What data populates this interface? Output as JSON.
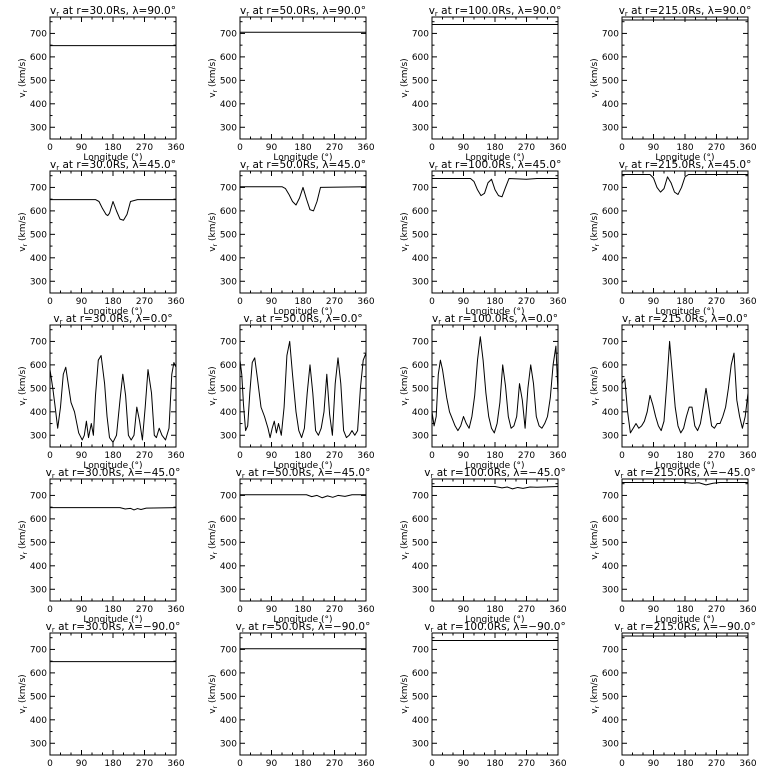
{
  "figure": {
    "xlabel": "Longitude (°)",
    "ylabel": "v",
    "ylabel_sub": "r",
    "ylabel_unit": "(km/s)",
    "title_prefix": "v",
    "title_sub": "r",
    "title_mid": " at r=",
    "title_rs": "Rs, ",
    "title_lambda": "λ=",
    "title_deg": "°",
    "radii": [
      "30.0",
      "50.0",
      "100.0",
      "215.0"
    ],
    "latitudes": [
      "90.0",
      "45.0",
      "0.0",
      "-45.0",
      "-90.0"
    ],
    "latitude_display": [
      "90.0",
      "45.0",
      "0.0",
      "−45.0",
      "−90.0"
    ],
    "xticks": [
      "0",
      "90",
      "180",
      "270",
      "360"
    ],
    "yticks": [
      "300",
      "400",
      "500",
      "600",
      "700"
    ],
    "colors": {
      "line": "#000000",
      "axes": "#000000",
      "background": "#ffffff"
    }
  },
  "chart_data": [
    {
      "type": "line",
      "title": "vr at r=30.0Rs, λ=90.0°",
      "xlabel": "Longitude (°)",
      "ylabel": "vr (km/s)",
      "xlim": [
        0,
        360
      ],
      "ylim": [
        250,
        770
      ],
      "x": [
        0,
        360
      ],
      "y": [
        648,
        648
      ]
    },
    {
      "type": "line",
      "title": "vr at r=50.0Rs, λ=90.0°",
      "xlabel": "Longitude (°)",
      "ylabel": "vr (km/s)",
      "xlim": [
        0,
        360
      ],
      "ylim": [
        250,
        770
      ],
      "x": [
        0,
        360
      ],
      "y": [
        705,
        705
      ]
    },
    {
      "type": "line",
      "title": "vr at r=100.0Rs, λ=90.0°",
      "xlabel": "Longitude (°)",
      "ylabel": "vr (km/s)",
      "xlim": [
        0,
        360
      ],
      "ylim": [
        250,
        770
      ],
      "x": [
        0,
        360
      ],
      "y": [
        738,
        738
      ]
    },
    {
      "type": "line",
      "title": "vr at r=215.0Rs, λ=90.0°",
      "xlabel": "Longitude (°)",
      "ylabel": "vr (km/s)",
      "xlim": [
        0,
        360
      ],
      "ylim": [
        250,
        770
      ],
      "x": [
        0,
        360
      ],
      "y": [
        757,
        757
      ]
    },
    {
      "type": "line",
      "title": "vr at r=30.0Rs, λ=45.0°",
      "xlabel": "Longitude (°)",
      "ylabel": "vr (km/s)",
      "xlim": [
        0,
        360
      ],
      "ylim": [
        250,
        770
      ],
      "x": [
        0,
        130,
        140,
        150,
        160,
        165,
        170,
        180,
        190,
        200,
        210,
        220,
        230,
        250,
        360
      ],
      "y": [
        648,
        648,
        640,
        610,
        585,
        580,
        590,
        640,
        600,
        565,
        560,
        585,
        640,
        648,
        648
      ]
    },
    {
      "type": "line",
      "title": "vr at r=50.0Rs, λ=45.0°",
      "xlabel": "Longitude (°)",
      "ylabel": "vr (km/s)",
      "xlim": [
        0,
        360
      ],
      "ylim": [
        250,
        770
      ],
      "x": [
        0,
        120,
        130,
        140,
        150,
        160,
        170,
        180,
        190,
        200,
        210,
        220,
        230,
        360
      ],
      "y": [
        703,
        703,
        695,
        670,
        640,
        625,
        655,
        700,
        650,
        605,
        600,
        640,
        700,
        703
      ]
    },
    {
      "type": "line",
      "title": "vr at r=100.0Rs, λ=45.0°",
      "xlabel": "Longitude (°)",
      "ylabel": "vr (km/s)",
      "xlim": [
        0,
        360
      ],
      "ylim": [
        250,
        770
      ],
      "x": [
        0,
        110,
        120,
        130,
        140,
        150,
        160,
        170,
        180,
        190,
        200,
        210,
        220,
        270,
        300,
        360
      ],
      "y": [
        738,
        738,
        725,
        690,
        665,
        675,
        720,
        735,
        690,
        665,
        660,
        700,
        738,
        735,
        738,
        738
      ]
    },
    {
      "type": "line",
      "title": "vr at r=215.0Rs, λ=45.0°",
      "xlabel": "Longitude (°)",
      "ylabel": "vr (km/s)",
      "xlim": [
        0,
        360
      ],
      "ylim": [
        250,
        770
      ],
      "x": [
        0,
        80,
        90,
        100,
        110,
        120,
        130,
        140,
        150,
        160,
        170,
        180,
        190,
        360
      ],
      "y": [
        755,
        755,
        740,
        700,
        680,
        695,
        745,
        720,
        680,
        670,
        700,
        745,
        755,
        755
      ]
    },
    {
      "type": "line",
      "title": "vr at r=30.0Rs, λ=0.0°",
      "xlabel": "Longitude (°)",
      "ylabel": "vr (km/s)",
      "xlim": [
        0,
        360
      ],
      "ylim": [
        250,
        770
      ],
      "x": [
        0,
        8,
        14,
        22,
        30,
        38,
        45,
        52,
        60,
        70,
        82,
        92,
        98,
        104,
        110,
        118,
        124,
        130,
        138,
        146,
        156,
        163,
        170,
        180,
        190,
        200,
        208,
        216,
        224,
        232,
        240,
        248,
        256,
        264,
        272,
        280,
        290,
        298,
        304,
        312,
        320,
        330,
        340,
        348,
        354,
        360
      ],
      "y": [
        580,
        500,
        430,
        330,
        420,
        560,
        590,
        520,
        440,
        400,
        310,
        280,
        300,
        360,
        290,
        350,
        300,
        470,
        620,
        640,
        520,
        380,
        290,
        270,
        300,
        450,
        560,
        470,
        300,
        280,
        300,
        420,
        360,
        280,
        420,
        580,
        480,
        300,
        290,
        330,
        300,
        280,
        330,
        560,
        610,
        590
      ]
    },
    {
      "type": "line",
      "title": "vr at r=50.0Rs, λ=0.0°",
      "xlabel": "Longitude (°)",
      "ylabel": "vr (km/s)",
      "xlim": [
        0,
        360
      ],
      "ylim": [
        250,
        770
      ],
      "x": [
        0,
        5,
        10,
        16,
        22,
        28,
        35,
        42,
        50,
        60,
        70,
        80,
        86,
        92,
        98,
        104,
        110,
        118,
        126,
        134,
        142,
        150,
        160,
        168,
        176,
        184,
        192,
        200,
        208,
        216,
        224,
        232,
        240,
        248,
        256,
        264,
        272,
        280,
        288,
        296,
        304,
        312,
        320,
        328,
        336,
        344,
        352,
        360
      ],
      "y": [
        620,
        560,
        430,
        320,
        340,
        480,
        610,
        630,
        540,
        420,
        380,
        330,
        290,
        330,
        360,
        310,
        350,
        300,
        420,
        640,
        700,
        560,
        400,
        320,
        290,
        330,
        480,
        600,
        480,
        320,
        300,
        330,
        400,
        560,
        390,
        300,
        520,
        630,
        520,
        320,
        290,
        300,
        320,
        300,
        320,
        500,
        620,
        650
      ]
    },
    {
      "type": "line",
      "title": "vr at r=100.0Rs, λ=0.0°",
      "xlabel": "Longitude (°)",
      "ylabel": "vr (km/s)",
      "xlim": [
        0,
        360
      ],
      "ylim": [
        250,
        770
      ],
      "x": [
        0,
        6,
        12,
        18,
        24,
        30,
        36,
        42,
        50,
        58,
        66,
        74,
        82,
        90,
        98,
        106,
        114,
        122,
        130,
        138,
        146,
        154,
        162,
        170,
        178,
        186,
        194,
        202,
        210,
        218,
        226,
        234,
        242,
        250,
        258,
        266,
        274,
        282,
        290,
        298,
        306,
        314,
        322,
        330,
        338,
        346,
        354,
        360
      ],
      "y": [
        400,
        340,
        380,
        560,
        620,
        580,
        520,
        460,
        400,
        370,
        340,
        320,
        340,
        380,
        350,
        330,
        380,
        470,
        620,
        720,
        620,
        480,
        380,
        330,
        310,
        350,
        440,
        600,
        510,
        380,
        330,
        340,
        380,
        520,
        450,
        330,
        500,
        600,
        520,
        380,
        340,
        330,
        350,
        380,
        460,
        600,
        680,
        480
      ]
    },
    {
      "type": "line",
      "title": "vr at r=215.0Rs, λ=0.0°",
      "xlabel": "Longitude (°)",
      "ylabel": "vr (km/s)",
      "xlim": [
        0,
        360
      ],
      "ylim": [
        250,
        770
      ],
      "x": [
        0,
        8,
        16,
        24,
        32,
        40,
        48,
        56,
        64,
        72,
        80,
        88,
        96,
        104,
        112,
        120,
        128,
        136,
        144,
        152,
        160,
        168,
        176,
        184,
        192,
        200,
        208,
        216,
        224,
        232,
        240,
        248,
        256,
        264,
        272,
        280,
        288,
        296,
        304,
        312,
        320,
        328,
        336,
        344,
        352,
        360
      ],
      "y": [
        520,
        540,
        400,
        310,
        330,
        350,
        330,
        340,
        360,
        400,
        470,
        430,
        380,
        340,
        320,
        360,
        520,
        700,
        560,
        420,
        340,
        310,
        330,
        380,
        420,
        420,
        340,
        320,
        350,
        420,
        500,
        420,
        340,
        330,
        350,
        350,
        380,
        420,
        500,
        600,
        650,
        450,
        380,
        330,
        380,
        480
      ]
    },
    {
      "type": "line",
      "title": "vr at r=30.0Rs, λ=−45.0°",
      "xlabel": "Longitude (°)",
      "ylabel": "vr (km/s)",
      "xlim": [
        0,
        360
      ],
      "ylim": [
        250,
        770
      ],
      "x": [
        0,
        200,
        215,
        230,
        240,
        250,
        260,
        275,
        360
      ],
      "y": [
        648,
        648,
        642,
        645,
        638,
        644,
        640,
        646,
        648
      ]
    },
    {
      "type": "line",
      "title": "vr at r=50.0Rs, λ=−45.0°",
      "xlabel": "Longitude (°)",
      "ylabel": "vr (km/s)",
      "xlim": [
        0,
        360
      ],
      "ylim": [
        250,
        770
      ],
      "x": [
        0,
        190,
        205,
        220,
        235,
        250,
        265,
        280,
        300,
        320,
        360
      ],
      "y": [
        703,
        703,
        695,
        700,
        690,
        698,
        692,
        700,
        696,
        703,
        703
      ]
    },
    {
      "type": "line",
      "title": "vr at r=100.0Rs, λ=−45.0°",
      "xlabel": "Longitude (°)",
      "ylabel": "vr (km/s)",
      "xlim": [
        0,
        360
      ],
      "ylim": [
        250,
        770
      ],
      "x": [
        0,
        180,
        200,
        215,
        230,
        245,
        260,
        280,
        300,
        360
      ],
      "y": [
        738,
        738,
        732,
        736,
        728,
        734,
        730,
        736,
        735,
        738
      ]
    },
    {
      "type": "line",
      "title": "vr at r=215.0Rs, λ=−45.0°",
      "xlabel": "Longitude (°)",
      "ylabel": "vr (km/s)",
      "xlim": [
        0,
        360
      ],
      "ylim": [
        250,
        770
      ],
      "x": [
        0,
        180,
        200,
        220,
        240,
        260,
        280,
        360
      ],
      "y": [
        755,
        755,
        752,
        754,
        745,
        752,
        755,
        755
      ]
    },
    {
      "type": "line",
      "title": "vr at r=30.0Rs, λ=−90.0°",
      "xlabel": "Longitude (°)",
      "ylabel": "vr (km/s)",
      "xlim": [
        0,
        360
      ],
      "ylim": [
        250,
        770
      ],
      "x": [
        0,
        360
      ],
      "y": [
        648,
        648
      ]
    },
    {
      "type": "line",
      "title": "vr at r=50.0Rs, λ=−90.0°",
      "xlabel": "Longitude (°)",
      "ylabel": "vr (km/s)",
      "xlim": [
        0,
        360
      ],
      "ylim": [
        250,
        770
      ],
      "x": [
        0,
        360
      ],
      "y": [
        703,
        703
      ]
    },
    {
      "type": "line",
      "title": "vr at r=100.0Rs, λ=−90.0°",
      "xlabel": "Longitude (°)",
      "ylabel": "vr (km/s)",
      "xlim": [
        0,
        360
      ],
      "ylim": [
        250,
        770
      ],
      "x": [
        0,
        360
      ],
      "y": [
        738,
        738
      ]
    },
    {
      "type": "line",
      "title": "vr at r=215.0Rs, λ=−90.0°",
      "xlabel": "Longitude (°)",
      "ylabel": "vr (km/s)",
      "xlim": [
        0,
        360
      ],
      "ylim": [
        250,
        770
      ],
      "x": [
        0,
        360
      ],
      "y": [
        757,
        757
      ]
    }
  ]
}
